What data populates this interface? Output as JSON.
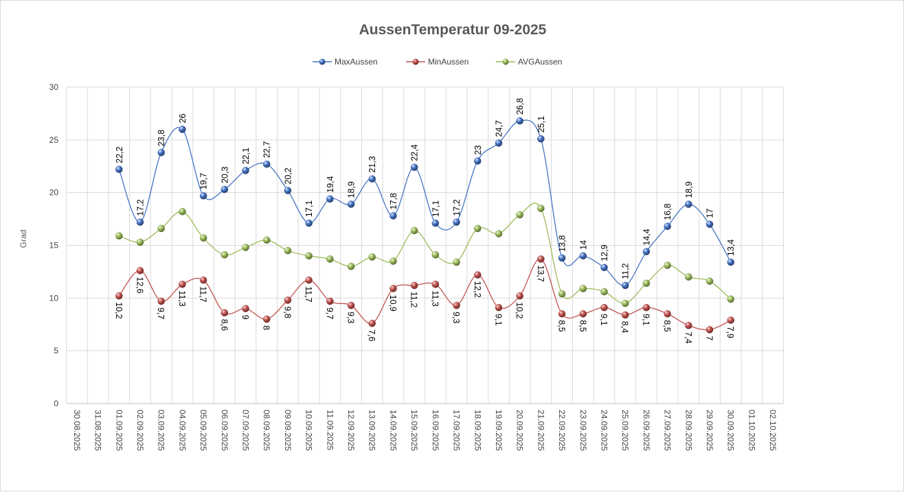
{
  "chart_data": {
    "type": "line",
    "title": "AussenTemperatur 09-2025",
    "xlabel": "",
    "ylabel": "Grad",
    "ylim": [
      0,
      30
    ],
    "yticks": [
      0,
      5,
      10,
      15,
      20,
      25,
      30
    ],
    "grid": true,
    "legend_position": "top-center",
    "categories": [
      "30.08.2025",
      "31.08.2025",
      "01.09.2025",
      "02.09.2025",
      "03.09.2025",
      "04.09.2025",
      "05.09.2025",
      "06.09.2025",
      "07.09.2025",
      "08.09.2025",
      "09.09.2025",
      "10.09.2025",
      "11.09.2025",
      "12.09.2025",
      "13.09.2025",
      "14.09.2025",
      "15.09.2025",
      "16.09.2025",
      "17.09.2025",
      "18.09.2025",
      "19.09.2025",
      "20.09.2025",
      "21.09.2025",
      "22.09.2025",
      "23.09.2025",
      "24.09.2025",
      "25.09.2025",
      "26.09.2025",
      "27.09.2025",
      "28.09.2025",
      "29.09.2025",
      "30.09.2025",
      "01.10.2025",
      "02.10.2025"
    ],
    "series": [
      {
        "name": "MaxAussen",
        "color": "#4472c4",
        "values": [
          null,
          null,
          22.2,
          17.2,
          23.8,
          26,
          19.7,
          20.3,
          22.1,
          22.7,
          20.2,
          17.1,
          19.4,
          18.9,
          21.3,
          17.8,
          22.4,
          17.1,
          17.2,
          23,
          24.7,
          26.8,
          25.1,
          13.8,
          14,
          12.9,
          11.2,
          14.4,
          16.8,
          18.9,
          17,
          13.4,
          null,
          null
        ],
        "labels": [
          null,
          null,
          "22,2",
          "17,2",
          "23,8",
          "26",
          "19,7",
          "20,3",
          "22,1",
          "22,7",
          "20,2",
          "17,1",
          "19,4",
          "18,9",
          "21,3",
          "17,8",
          "22,4",
          "17,1",
          "17,2",
          "23",
          "24,7",
          "26,8",
          "25,1",
          "13,8",
          "14",
          "12,9",
          "11,2",
          "14,4",
          "16,8",
          "18,9",
          "17",
          "13,4",
          null,
          null
        ]
      },
      {
        "name": "MinAussen",
        "color": "#c0504d",
        "values": [
          null,
          null,
          10.2,
          12.6,
          9.7,
          11.3,
          11.7,
          8.6,
          9,
          8,
          9.8,
          11.7,
          9.7,
          9.3,
          7.6,
          10.9,
          11.2,
          11.3,
          9.3,
          12.2,
          9.1,
          10.2,
          13.7,
          8.5,
          8.5,
          9.1,
          8.4,
          9.1,
          8.5,
          7.4,
          7,
          7.9,
          null,
          null
        ],
        "labels": [
          null,
          null,
          "10,2",
          "12,6",
          "9,7",
          "11,3",
          "11,7",
          "8,6",
          "9",
          "8",
          "9,8",
          "11,7",
          "9,7",
          "9,3",
          "7,6",
          "10,9",
          "11,2",
          "11,3",
          "9,3",
          "12,2",
          "9,1",
          "10,2",
          "13,7",
          "8,5",
          "8,5",
          "9,1",
          "8,4",
          "9,1",
          "8,5",
          "7,4",
          "7",
          "7,9",
          null,
          null
        ]
      },
      {
        "name": "AVGAussen",
        "color": "#9bbb59",
        "values": [
          null,
          null,
          15.9,
          15.3,
          16.6,
          18.2,
          15.7,
          14.1,
          14.8,
          15.5,
          14.5,
          14,
          13.7,
          13,
          13.9,
          13.5,
          16.4,
          14.1,
          13.4,
          16.6,
          16.1,
          17.9,
          18.5,
          10.4,
          10.9,
          10.6,
          9.5,
          11.4,
          13.1,
          12,
          11.6,
          9.9,
          null,
          null
        ]
      }
    ]
  }
}
